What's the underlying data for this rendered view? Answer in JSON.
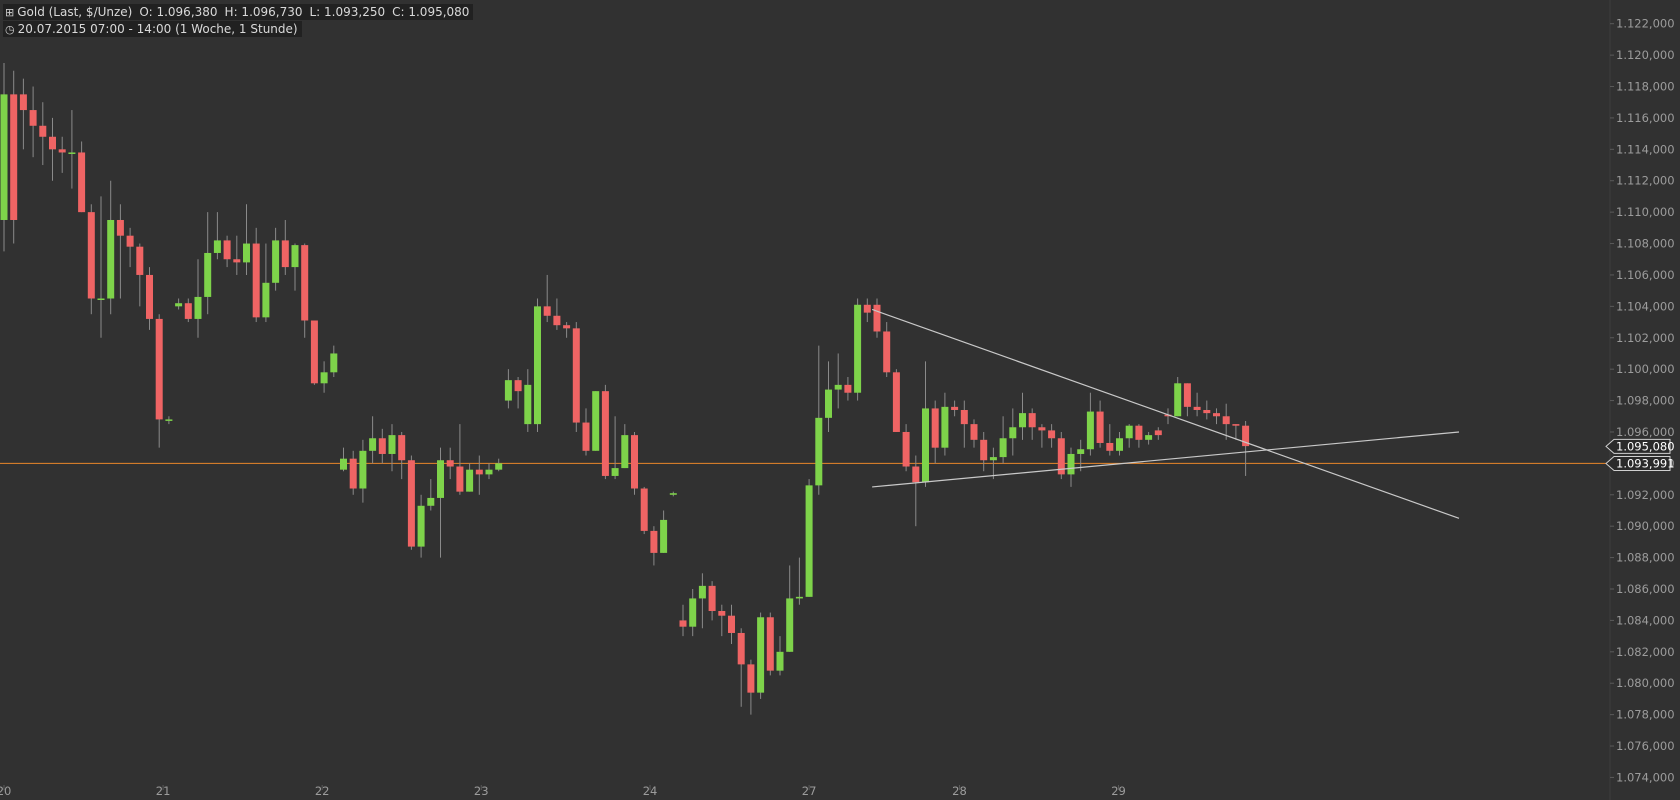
{
  "header": {
    "instrument": "Gold (Last, $/Unze)",
    "ohlc": {
      "o": "O: 1.096,380",
      "h": "H: 1.096,730",
      "l": "L: 1.093,250",
      "c": "C: 1.095,080"
    },
    "range": "20.07.2015 07:00 - 14:00 (1 Woche, 1 Stunde)",
    "icons": [
      "chart-type-icon",
      "clock-icon"
    ]
  },
  "colors": {
    "background": "#313131",
    "bullish": "#7ed34a",
    "bearish": "#ef6464",
    "wick": "#8a8a8a",
    "trendline": "#c9c9c9",
    "horizontal_line": "#e8862a",
    "axis_text": "#9c9c9c"
  },
  "chart_data": {
    "type": "candlestick",
    "yaxis": {
      "min": 1073.2,
      "max": 1123.0,
      "ticks": [
        1074,
        1076,
        1078,
        1080,
        1082,
        1084,
        1086,
        1088,
        1090,
        1092,
        1094,
        1096,
        1098,
        1100,
        1102,
        1104,
        1106,
        1108,
        1110,
        1112,
        1114,
        1116,
        1118,
        1120,
        1122
      ],
      "tick_labels": [
        "1.074,000",
        "1.076,000",
        "1.078,000",
        "1.080,000",
        "1.082,000",
        "1.084,000",
        "1.086,000",
        "1.088,000",
        "1.090,000",
        "1.092,000",
        "1.094,000",
        "1.096,000",
        "1.098,000",
        "1.100,000",
        "1.102,000",
        "1.104,000",
        "1.106,000",
        "1.108,000",
        "1.110,000",
        "1.112,000",
        "1.114,000",
        "1.116,000",
        "1.118,000",
        "1.120,000",
        "1.122,000"
      ],
      "side": "right"
    },
    "xaxis": {
      "labels": [
        {
          "label": "20",
          "at": 0
        },
        {
          "label": "21",
          "at": 16.4
        },
        {
          "label": "22",
          "at": 32.8
        },
        {
          "label": "23",
          "at": 49.2
        },
        {
          "label": "24",
          "at": 66.6
        },
        {
          "label": "27",
          "at": 83.0
        },
        {
          "label": "28",
          "at": 98.5
        },
        {
          "label": "29",
          "at": 114.9
        }
      ]
    },
    "candles": [
      [
        1109.5,
        1117.5,
        1119.5,
        1107.5
      ],
      [
        1117.5,
        1109.5,
        1119.0,
        1108.0
      ],
      [
        1117.5,
        1116.5,
        1118.5,
        1114.0
      ],
      [
        1116.5,
        1115.5,
        1118.0,
        1113.5
      ],
      [
        1115.5,
        1114.8,
        1117.0,
        1113.0
      ],
      [
        1114.8,
        1114.0,
        1116.0,
        1112.0
      ],
      [
        1114.0,
        1113.8,
        1114.8,
        1112.5
      ],
      [
        1113.8,
        1113.8,
        1116.5,
        1111.5
      ],
      [
        1113.8,
        1110.0,
        1114.5,
        1112.0
      ],
      [
        1110.0,
        1104.5,
        1110.5,
        1103.5
      ],
      [
        1104.5,
        1104.5,
        1111.0,
        1102.0
      ],
      [
        1104.5,
        1109.5,
        1112.0,
        1103.5
      ],
      [
        1109.5,
        1108.5,
        1110.5,
        1104.5
      ],
      [
        1108.5,
        1107.8,
        1109.0,
        1106.5
      ],
      [
        1107.8,
        1106.0,
        1108.0,
        1104.0
      ],
      [
        1106.0,
        1103.2,
        1106.5,
        1102.5
      ],
      [
        1103.2,
        1096.8,
        1103.5,
        1095.0
      ],
      [
        1096.8,
        1096.8,
        1097.0,
        1096.5
      ],
      [
        1104.0,
        1104.2,
        1104.5,
        1103.8
      ],
      [
        1104.2,
        1103.2,
        1104.5,
        1103.0
      ],
      [
        1103.2,
        1104.6,
        1107.0,
        1102.0
      ],
      [
        1104.6,
        1107.4,
        1110.0,
        1103.5
      ],
      [
        1107.4,
        1108.2,
        1110.0,
        1107.0
      ],
      [
        1108.2,
        1107.0,
        1108.5,
        1106.5
      ],
      [
        1107.0,
        1106.8,
        1108.5,
        1106.0
      ],
      [
        1106.8,
        1108.0,
        1110.5,
        1106.0
      ],
      [
        1108.0,
        1103.3,
        1109.0,
        1103.0
      ],
      [
        1103.3,
        1105.5,
        1108.0,
        1103.0
      ],
      [
        1105.5,
        1108.2,
        1109.0,
        1105.0
      ],
      [
        1108.2,
        1106.5,
        1109.5,
        1106.0
      ],
      [
        1106.5,
        1107.9,
        1108.0,
        1105.0
      ],
      [
        1107.9,
        1103.1,
        1108.0,
        1102.0
      ],
      [
        1103.1,
        1099.1,
        1103.0,
        1099.0
      ],
      [
        1099.1,
        1099.8,
        1100.5,
        1098.5
      ],
      [
        1099.8,
        1101.0,
        1101.5,
        1099.5
      ],
      [
        1093.6,
        1094.3,
        1095.0,
        1093.5
      ],
      [
        1094.3,
        1092.4,
        1094.8,
        1092.0
      ],
      [
        1092.4,
        1094.8,
        1095.5,
        1091.5
      ],
      [
        1094.8,
        1095.6,
        1097.0,
        1094.0
      ],
      [
        1095.6,
        1094.6,
        1096.2,
        1094.0
      ],
      [
        1094.6,
        1095.8,
        1096.5,
        1093.5
      ],
      [
        1095.8,
        1094.2,
        1096.0,
        1093.0
      ],
      [
        1094.2,
        1088.7,
        1094.5,
        1088.5
      ],
      [
        1088.7,
        1091.3,
        1092.0,
        1088.0
      ],
      [
        1091.3,
        1091.8,
        1093.0,
        1091.0
      ],
      [
        1091.8,
        1094.2,
        1095.0,
        1088.0
      ],
      [
        1094.2,
        1093.8,
        1095.0,
        1093.0
      ],
      [
        1093.8,
        1092.2,
        1096.5,
        1092.0
      ],
      [
        1092.2,
        1093.6,
        1094.0,
        1092.5
      ],
      [
        1093.6,
        1093.3,
        1094.5,
        1092.0
      ],
      [
        1093.3,
        1093.6,
        1094.0,
        1093.0
      ],
      [
        1093.6,
        1094.0,
        1094.3,
        1093.5
      ],
      [
        1098.0,
        1099.3,
        1100.0,
        1097.5
      ],
      [
        1099.3,
        1098.6,
        1099.5,
        1097.5
      ],
      [
        1096.5,
        1099.0,
        1100.0,
        1096.0
      ],
      [
        1096.5,
        1104.0,
        1104.5,
        1096.0
      ],
      [
        1104.0,
        1103.4,
        1106.0,
        1103.0
      ],
      [
        1103.4,
        1102.8,
        1104.5,
        1102.5
      ],
      [
        1102.8,
        1102.6,
        1103.0,
        1102.0
      ],
      [
        1102.6,
        1096.6,
        1103.0,
        1096.0
      ],
      [
        1096.6,
        1094.8,
        1097.5,
        1094.5
      ],
      [
        1094.8,
        1098.6,
        1098.5,
        1095.0
      ],
      [
        1098.6,
        1093.2,
        1099.0,
        1093.0
      ],
      [
        1093.2,
        1093.7,
        1097.0,
        1093.0
      ],
      [
        1093.7,
        1095.8,
        1096.5,
        1094.0
      ],
      [
        1095.8,
        1092.4,
        1096.0,
        1092.0
      ],
      [
        1092.4,
        1089.7,
        1092.5,
        1089.5
      ],
      [
        1089.7,
        1088.3,
        1090.0,
        1087.5
      ],
      [
        1088.3,
        1090.4,
        1091.0,
        1089.0
      ],
      [
        1092.0,
        1092.1,
        1092.2,
        1091.9
      ],
      [
        1084.0,
        1083.6,
        1085.0,
        1083.0
      ],
      [
        1083.6,
        1085.4,
        1086.0,
        1083.0
      ],
      [
        1085.4,
        1086.2,
        1087.0,
        1083.5
      ],
      [
        1086.2,
        1084.6,
        1086.5,
        1084.0
      ],
      [
        1084.6,
        1084.3,
        1085.0,
        1083.0
      ],
      [
        1084.3,
        1083.2,
        1085.0,
        1082.5
      ],
      [
        1083.2,
        1081.2,
        1083.5,
        1078.5
      ],
      [
        1081.2,
        1079.4,
        1081.5,
        1078.0
      ],
      [
        1079.4,
        1084.2,
        1084.5,
        1079.0
      ],
      [
        1084.2,
        1080.8,
        1084.5,
        1080.5
      ],
      [
        1080.8,
        1082.0,
        1083.0,
        1080.5
      ],
      [
        1082.0,
        1085.4,
        1087.5,
        1082.0
      ],
      [
        1085.4,
        1085.5,
        1088.0,
        1085.0
      ],
      [
        1085.5,
        1092.6,
        1093.0,
        1085.5
      ],
      [
        1092.6,
        1096.9,
        1101.5,
        1092.0
      ],
      [
        1096.9,
        1098.7,
        1100.5,
        1096.0
      ],
      [
        1098.7,
        1099.0,
        1101.0,
        1097.5
      ],
      [
        1099.0,
        1098.5,
        1099.5,
        1098.0
      ],
      [
        1098.5,
        1104.1,
        1104.5,
        1098.0
      ],
      [
        1104.1,
        1103.6,
        1104.5,
        1103.0
      ],
      [
        1104.1,
        1102.4,
        1104.5,
        1102.0
      ],
      [
        1102.4,
        1099.8,
        1103.0,
        1099.5
      ],
      [
        1099.8,
        1096.0,
        1100.0,
        1096.0
      ],
      [
        1096.0,
        1093.8,
        1096.5,
        1093.5
      ],
      [
        1093.8,
        1092.8,
        1094.5,
        1090.0
      ],
      [
        1092.8,
        1097.5,
        1100.5,
        1092.5
      ],
      [
        1097.5,
        1095.0,
        1098.0,
        1094.0
      ],
      [
        1095.0,
        1097.6,
        1098.5,
        1094.5
      ],
      [
        1097.6,
        1097.4,
        1098.0,
        1097.0
      ],
      [
        1097.4,
        1096.5,
        1098.0,
        1095.0
      ],
      [
        1096.5,
        1095.5,
        1096.8,
        1095.0
      ],
      [
        1095.5,
        1094.2,
        1096.0,
        1093.5
      ],
      [
        1094.2,
        1094.4,
        1095.0,
        1093.0
      ],
      [
        1094.4,
        1095.6,
        1097.0,
        1094.0
      ],
      [
        1095.6,
        1096.3,
        1097.5,
        1094.5
      ],
      [
        1096.3,
        1097.2,
        1098.5,
        1095.5
      ],
      [
        1097.2,
        1096.3,
        1097.5,
        1095.5
      ],
      [
        1096.3,
        1096.1,
        1096.5,
        1095.0
      ],
      [
        1096.1,
        1095.6,
        1096.5,
        1095.0
      ],
      [
        1095.6,
        1093.3,
        1096.0,
        1093.0
      ],
      [
        1093.3,
        1094.6,
        1095.0,
        1092.5
      ],
      [
        1094.6,
        1094.9,
        1095.5,
        1093.5
      ],
      [
        1094.9,
        1097.3,
        1098.5,
        1094.5
      ],
      [
        1097.3,
        1095.3,
        1098.0,
        1095.0
      ],
      [
        1095.3,
        1094.8,
        1096.5,
        1094.5
      ],
      [
        1094.8,
        1095.6,
        1096.0,
        1094.5
      ],
      [
        1095.6,
        1096.4,
        1096.5,
        1095.0
      ],
      [
        1096.4,
        1095.5,
        1096.5,
        1095.0
      ],
      [
        1095.5,
        1095.8,
        1096.0,
        1095.2
      ],
      [
        1096.1,
        1095.8,
        1096.3,
        1095.5
      ],
      [
        1097.1,
        1097.0,
        1097.5,
        1096.5
      ],
      [
        1097.0,
        1099.1,
        1099.5,
        1097.0
      ],
      [
        1099.1,
        1097.6,
        1099.0,
        1097.0
      ],
      [
        1097.6,
        1097.4,
        1098.5,
        1097.0
      ],
      [
        1097.4,
        1097.2,
        1098.0,
        1096.8
      ],
      [
        1097.2,
        1097.0,
        1097.5,
        1096.5
      ],
      [
        1097.0,
        1096.5,
        1097.8,
        1095.5
      ],
      [
        1096.5,
        1096.4,
        1096.5,
        1095.5
      ],
      [
        1096.4,
        1095.1,
        1096.7,
        1093.2
      ]
    ],
    "candle_order": "open, close, high, low",
    "trendlines": [
      {
        "from": [
          89.5,
          1103.8
        ],
        "to": [
          150.0,
          1090.5
        ]
      },
      {
        "from": [
          89.5,
          1092.5
        ],
        "to": [
          150.0,
          1096.0
        ]
      }
    ],
    "horizontal_lines": [
      {
        "value": 1094.0,
        "color": "#e8862a"
      }
    ],
    "price_tags": [
      {
        "label": "1.095,080",
        "value": 1095.08
      },
      {
        "label": "1.093,991",
        "value": 1093.99
      }
    ]
  }
}
